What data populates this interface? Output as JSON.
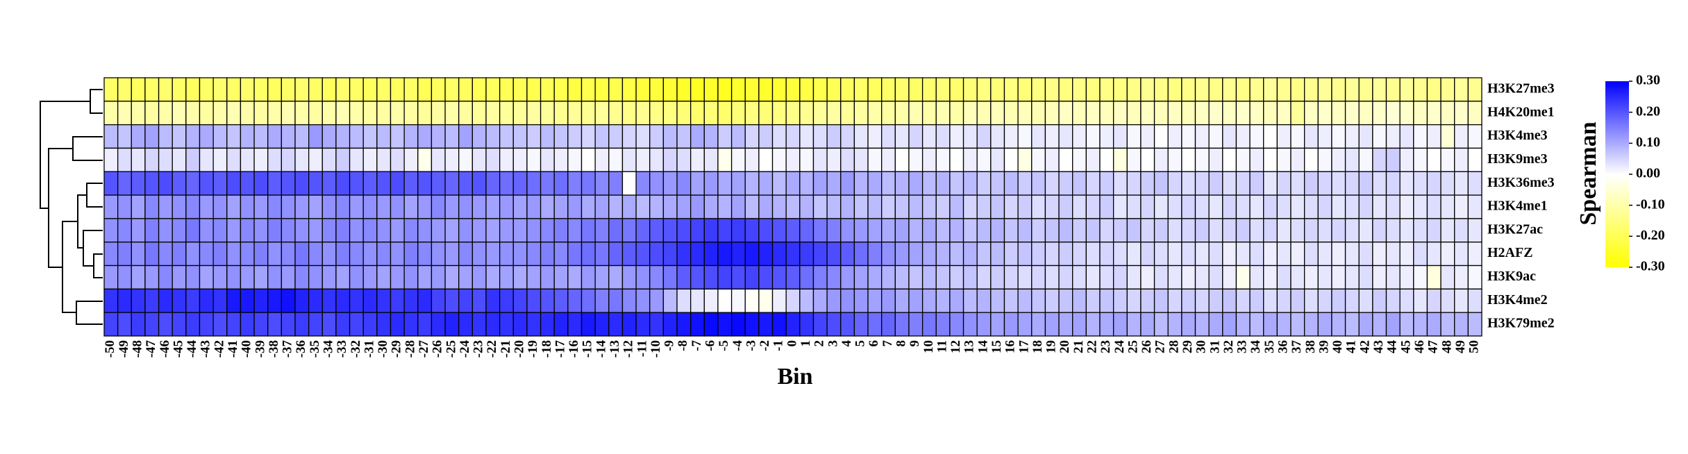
{
  "chart_data": {
    "type": "heatmap",
    "xlabel": "Bin",
    "colorbar_label": "Spearman",
    "x": [
      -50,
      -49,
      -48,
      -47,
      -46,
      -45,
      -44,
      -43,
      -42,
      -41,
      -40,
      -39,
      -38,
      -37,
      -36,
      -35,
      -34,
      -33,
      -32,
      -31,
      -30,
      -29,
      -28,
      -27,
      -26,
      -25,
      -24,
      -23,
      -22,
      -21,
      -20,
      -19,
      -18,
      -17,
      -16,
      -15,
      -14,
      -13,
      -12,
      -11,
      -10,
      -9,
      -8,
      -7,
      -6,
      -5,
      -4,
      -3,
      -2,
      -1,
      0,
      1,
      2,
      3,
      4,
      5,
      6,
      7,
      8,
      9,
      10,
      11,
      12,
      13,
      14,
      15,
      16,
      17,
      18,
      19,
      20,
      21,
      22,
      23,
      24,
      25,
      26,
      27,
      28,
      29,
      30,
      31,
      32,
      33,
      34,
      35,
      36,
      37,
      38,
      39,
      40,
      41,
      42,
      43,
      44,
      45,
      46,
      47,
      48,
      49,
      50
    ],
    "rows": [
      "H3K27me3",
      "H4K20me1",
      "H3K4me3",
      "H3K9me3",
      "H3K36me3",
      "H3K4me1",
      "H3K27ac",
      "H2AFZ",
      "H3K9ac",
      "H3K4me2",
      "H3K79me2"
    ],
    "values": [
      [
        -0.18,
        -0.17,
        -0.19,
        -0.18,
        -0.17,
        -0.18,
        -0.19,
        -0.18,
        -0.17,
        -0.18,
        -0.17,
        -0.18,
        -0.19,
        -0.18,
        -0.17,
        -0.18,
        -0.19,
        -0.17,
        -0.18,
        -0.19,
        -0.18,
        -0.19,
        -0.18,
        -0.2,
        -0.19,
        -0.18,
        -0.19,
        -0.2,
        -0.19,
        -0.2,
        -0.2,
        -0.21,
        -0.2,
        -0.21,
        -0.22,
        -0.21,
        -0.22,
        -0.21,
        -0.22,
        -0.23,
        -0.23,
        -0.24,
        -0.25,
        -0.26,
        -0.25,
        -0.26,
        -0.25,
        -0.24,
        -0.25,
        -0.24,
        -0.23,
        -0.22,
        -0.21,
        -0.2,
        -0.19,
        -0.18,
        -0.19,
        -0.18,
        -0.17,
        -0.18,
        -0.17,
        -0.16,
        -0.17,
        -0.16,
        -0.15,
        -0.16,
        -0.15,
        -0.16,
        -0.15,
        -0.14,
        -0.15,
        -0.14,
        -0.15,
        -0.14,
        -0.15,
        -0.14,
        -0.13,
        -0.14,
        -0.15,
        -0.14,
        -0.13,
        -0.14,
        -0.13,
        -0.14,
        -0.13,
        -0.12,
        -0.13,
        -0.14,
        -0.13,
        -0.12,
        -0.13,
        -0.12,
        -0.13,
        -0.12,
        -0.13,
        -0.12,
        -0.13,
        -0.14,
        -0.13,
        -0.12,
        -0.13
      ],
      [
        -0.1,
        -0.09,
        -0.1,
        -0.11,
        -0.1,
        -0.09,
        -0.1,
        -0.11,
        -0.1,
        -0.09,
        -0.1,
        -0.11,
        -0.1,
        -0.09,
        -0.1,
        -0.11,
        -0.1,
        -0.09,
        -0.1,
        -0.11,
        -0.11,
        -0.1,
        -0.11,
        -0.12,
        -0.11,
        -0.1,
        -0.11,
        -0.12,
        -0.11,
        -0.12,
        -0.12,
        -0.11,
        -0.12,
        -0.13,
        -0.12,
        -0.13,
        -0.12,
        -0.13,
        -0.14,
        -0.13,
        -0.14,
        -0.15,
        -0.16,
        -0.17,
        -0.16,
        -0.17,
        -0.16,
        -0.15,
        -0.16,
        -0.15,
        -0.14,
        -0.13,
        -0.12,
        -0.11,
        -0.12,
        -0.11,
        -0.1,
        -0.11,
        -0.1,
        -0.09,
        -0.1,
        -0.09,
        -0.1,
        -0.08,
        -0.09,
        -0.08,
        -0.09,
        -0.08,
        -0.09,
        -0.08,
        -0.07,
        -0.08,
        -0.07,
        -0.08,
        -0.07,
        -0.08,
        -0.07,
        -0.08,
        -0.07,
        -0.08,
        -0.07,
        -0.06,
        -0.07,
        -0.06,
        -0.07,
        -0.08,
        -0.07,
        -0.12,
        -0.07,
        -0.06,
        -0.07,
        -0.06,
        -0.07,
        -0.06,
        -0.05,
        -0.06,
        -0.07,
        -0.06,
        -0.07,
        -0.06,
        -0.07
      ],
      [
        0.08,
        0.07,
        0.1,
        0.11,
        0.08,
        0.07,
        0.09,
        0.1,
        0.08,
        0.07,
        0.09,
        0.08,
        0.1,
        0.09,
        0.08,
        0.12,
        0.1,
        0.09,
        0.08,
        0.07,
        0.08,
        0.07,
        0.09,
        0.1,
        0.09,
        0.08,
        0.11,
        0.09,
        0.08,
        0.07,
        0.07,
        0.06,
        0.08,
        0.07,
        0.06,
        0.05,
        0.07,
        0.06,
        0.05,
        0.04,
        0.06,
        0.08,
        0.07,
        0.1,
        0.09,
        0.06,
        0.08,
        0.05,
        0.06,
        0.04,
        0.05,
        0.03,
        0.04,
        0.06,
        0.05,
        0.03,
        0.02,
        0.04,
        0.03,
        0.05,
        0.03,
        0.04,
        0.02,
        0.03,
        0.05,
        0.03,
        0.02,
        0.01,
        0.03,
        0.02,
        0.03,
        0.02,
        0.01,
        0.02,
        0.03,
        0.01,
        0.02,
        0.0,
        0.02,
        0.01,
        0.02,
        0.01,
        0.03,
        0.02,
        0.01,
        0.0,
        0.02,
        0.01,
        0.03,
        0.02,
        0.01,
        0.02,
        0.03,
        0.01,
        0.02,
        0.03,
        0.01,
        0.02,
        -0.05,
        0.02,
        0.01
      ],
      [
        0.02,
        0.04,
        0.03,
        0.05,
        0.04,
        0.03,
        0.06,
        0.03,
        0.02,
        0.04,
        0.03,
        0.02,
        0.04,
        0.05,
        0.03,
        0.02,
        0.04,
        0.06,
        0.03,
        0.02,
        0.03,
        0.04,
        0.02,
        -0.02,
        0.03,
        0.02,
        0.01,
        0.03,
        0.04,
        0.02,
        0.02,
        0.01,
        0.03,
        0.02,
        0.01,
        0.0,
        0.02,
        0.01,
        0.03,
        0.02,
        0.03,
        0.05,
        0.04,
        0.02,
        0.03,
        -0.02,
        0.01,
        0.02,
        0.0,
        0.01,
        0.02,
        0.01,
        0.03,
        0.02,
        0.04,
        0.03,
        0.01,
        0.02,
        0.0,
        0.01,
        0.02,
        0.01,
        0.0,
        0.02,
        0.01,
        0.03,
        0.0,
        -0.03,
        0.01,
        0.02,
        0.0,
        0.01,
        0.02,
        0.0,
        -0.04,
        0.01,
        0.0,
        0.02,
        0.01,
        0.0,
        0.01,
        0.02,
        0.0,
        0.01,
        0.02,
        0.0,
        0.01,
        0.02,
        0.0,
        0.01,
        0.02,
        0.03,
        0.01,
        0.05,
        0.06,
        0.02,
        0.01,
        0.0,
        0.01,
        0.02,
        0.0
      ],
      [
        0.2,
        0.18,
        0.19,
        0.2,
        0.21,
        0.19,
        0.18,
        0.2,
        0.19,
        0.21,
        0.2,
        0.21,
        0.19,
        0.2,
        0.21,
        0.2,
        0.19,
        0.21,
        0.2,
        0.19,
        0.2,
        0.21,
        0.19,
        0.2,
        0.19,
        0.18,
        0.19,
        0.2,
        0.18,
        0.17,
        0.18,
        0.17,
        0.16,
        0.17,
        0.15,
        0.16,
        0.14,
        0.15,
        0.0,
        0.14,
        0.13,
        0.12,
        0.14,
        0.11,
        0.12,
        0.1,
        0.11,
        0.09,
        0.1,
        0.08,
        0.1,
        0.09,
        0.11,
        0.1,
        0.12,
        0.09,
        0.1,
        0.08,
        0.09,
        0.1,
        0.08,
        0.09,
        0.07,
        0.08,
        0.06,
        0.07,
        0.08,
        0.06,
        0.07,
        0.05,
        0.06,
        0.07,
        0.05,
        0.06,
        0.04,
        0.05,
        0.06,
        0.07,
        0.05,
        0.04,
        0.05,
        0.06,
        0.04,
        0.05,
        0.06,
        0.03,
        0.05,
        0.04,
        0.06,
        0.05,
        0.04,
        0.05,
        0.06,
        0.04,
        0.05,
        0.03,
        0.04,
        0.05,
        0.04,
        0.03,
        0.04
      ],
      [
        0.12,
        0.13,
        0.11,
        0.14,
        0.12,
        0.13,
        0.14,
        0.12,
        0.13,
        0.11,
        0.13,
        0.12,
        0.14,
        0.13,
        0.12,
        0.11,
        0.13,
        0.14,
        0.12,
        0.13,
        0.12,
        0.13,
        0.11,
        0.12,
        0.14,
        0.12,
        0.13,
        0.12,
        0.11,
        0.12,
        0.11,
        0.12,
        0.1,
        0.11,
        0.12,
        0.1,
        0.11,
        0.09,
        0.1,
        0.08,
        0.09,
        0.1,
        0.11,
        0.12,
        0.1,
        0.09,
        0.11,
        0.08,
        0.1,
        0.09,
        0.08,
        0.09,
        0.07,
        0.08,
        0.09,
        0.07,
        0.08,
        0.06,
        0.07,
        0.08,
        0.07,
        0.06,
        0.08,
        0.05,
        0.06,
        0.07,
        0.05,
        0.06,
        0.04,
        0.05,
        0.06,
        0.04,
        0.05,
        0.06,
        0.03,
        0.04,
        0.05,
        0.03,
        0.04,
        0.05,
        0.04,
        0.03,
        0.05,
        0.04,
        0.03,
        0.05,
        0.04,
        0.03,
        0.04,
        0.05,
        0.03,
        0.04,
        0.05,
        0.03,
        0.04,
        0.02,
        0.03,
        0.04,
        0.03,
        0.02,
        0.03
      ],
      [
        0.13,
        0.14,
        0.12,
        0.15,
        0.13,
        0.14,
        0.16,
        0.13,
        0.14,
        0.12,
        0.14,
        0.13,
        0.15,
        0.14,
        0.13,
        0.12,
        0.14,
        0.15,
        0.13,
        0.14,
        0.13,
        0.12,
        0.14,
        0.13,
        0.12,
        0.11,
        0.13,
        0.12,
        0.11,
        0.12,
        0.12,
        0.13,
        0.14,
        0.15,
        0.14,
        0.16,
        0.15,
        0.17,
        0.16,
        0.18,
        0.19,
        0.2,
        0.21,
        0.22,
        0.23,
        0.22,
        0.23,
        0.22,
        0.21,
        0.2,
        0.19,
        0.18,
        0.16,
        0.15,
        0.13,
        0.12,
        0.11,
        0.1,
        0.11,
        0.09,
        0.1,
        0.08,
        0.09,
        0.07,
        0.08,
        0.09,
        0.07,
        0.08,
        0.06,
        0.07,
        0.08,
        0.06,
        0.07,
        0.05,
        0.06,
        0.07,
        0.05,
        0.06,
        0.04,
        0.05,
        0.06,
        0.04,
        0.05,
        0.06,
        0.04,
        0.05,
        0.03,
        0.04,
        0.05,
        0.04,
        0.05,
        0.04,
        0.03,
        0.05,
        0.04,
        0.03,
        0.04,
        0.05,
        0.03,
        0.04,
        0.03
      ],
      [
        0.14,
        0.15,
        0.13,
        0.16,
        0.14,
        0.15,
        0.13,
        0.14,
        0.15,
        0.13,
        0.14,
        0.15,
        0.13,
        0.14,
        0.16,
        0.14,
        0.13,
        0.15,
        0.14,
        0.13,
        0.14,
        0.13,
        0.15,
        0.14,
        0.13,
        0.12,
        0.14,
        0.13,
        0.12,
        0.13,
        0.13,
        0.14,
        0.15,
        0.14,
        0.16,
        0.17,
        0.16,
        0.18,
        0.19,
        0.2,
        0.21,
        0.22,
        0.24,
        0.25,
        0.26,
        0.27,
        0.26,
        0.27,
        0.26,
        0.25,
        0.24,
        0.23,
        0.22,
        0.21,
        0.19,
        0.17,
        0.15,
        0.13,
        0.12,
        0.11,
        0.1,
        0.09,
        0.08,
        0.09,
        0.07,
        0.08,
        0.06,
        0.07,
        0.06,
        0.05,
        0.06,
        0.05,
        0.04,
        0.05,
        0.04,
        0.03,
        0.05,
        0.04,
        0.03,
        0.04,
        0.03,
        0.04,
        0.02,
        0.03,
        0.04,
        0.02,
        0.03,
        0.02,
        0.04,
        0.03,
        0.02,
        0.03,
        0.04,
        0.02,
        0.03,
        0.02,
        0.04,
        0.03,
        0.02,
        0.03,
        0.02
      ],
      [
        0.12,
        0.13,
        0.11,
        0.12,
        0.14,
        0.12,
        0.13,
        0.11,
        0.12,
        0.13,
        0.12,
        0.11,
        0.13,
        0.12,
        0.14,
        0.13,
        0.12,
        0.11,
        0.13,
        0.12,
        0.11,
        0.12,
        0.13,
        0.11,
        0.12,
        0.1,
        0.11,
        0.12,
        0.1,
        0.11,
        0.1,
        0.11,
        0.12,
        0.11,
        0.1,
        0.12,
        0.11,
        0.1,
        0.12,
        0.13,
        0.14,
        0.16,
        0.19,
        0.2,
        0.21,
        0.22,
        0.21,
        0.22,
        0.21,
        0.2,
        0.19,
        0.17,
        0.15,
        0.14,
        0.12,
        0.11,
        0.1,
        0.09,
        0.08,
        0.07,
        0.08,
        0.07,
        0.06,
        0.07,
        0.05,
        0.06,
        0.05,
        0.04,
        0.05,
        0.04,
        0.05,
        0.04,
        0.03,
        0.04,
        0.05,
        0.03,
        0.02,
        0.04,
        0.03,
        0.02,
        0.03,
        0.04,
        0.02,
        -0.02,
        0.03,
        0.02,
        0.04,
        0.03,
        0.02,
        0.03,
        0.02,
        0.03,
        0.04,
        0.02,
        0.03,
        0.02,
        0.01,
        -0.04,
        0.03,
        0.02,
        0.01
      ],
      [
        0.24,
        0.25,
        0.24,
        0.23,
        0.25,
        0.24,
        0.23,
        0.25,
        0.24,
        0.27,
        0.27,
        0.26,
        0.27,
        0.28,
        0.26,
        0.25,
        0.24,
        0.25,
        0.24,
        0.25,
        0.24,
        0.23,
        0.24,
        0.25,
        0.22,
        0.21,
        0.22,
        0.21,
        0.24,
        0.23,
        0.22,
        0.21,
        0.2,
        0.19,
        0.18,
        0.17,
        0.15,
        0.16,
        0.14,
        0.13,
        0.12,
        0.08,
        0.04,
        0.03,
        0.02,
        0.0,
        0.01,
        -0.01,
        -0.02,
        0.02,
        0.05,
        0.08,
        0.1,
        0.12,
        0.13,
        0.12,
        0.11,
        0.12,
        0.1,
        0.11,
        0.1,
        0.09,
        0.1,
        0.08,
        0.09,
        0.08,
        0.07,
        0.08,
        0.07,
        0.06,
        0.07,
        0.08,
        0.06,
        0.07,
        0.06,
        0.05,
        0.06,
        0.07,
        0.05,
        0.06,
        0.05,
        0.06,
        0.07,
        0.05,
        0.06,
        0.04,
        0.05,
        0.06,
        0.04,
        0.05,
        0.06,
        0.05,
        0.04,
        0.06,
        0.05,
        0.04,
        0.03,
        0.05,
        0.04,
        0.03,
        0.04
      ],
      [
        0.22,
        0.21,
        0.23,
        0.22,
        0.21,
        0.22,
        0.23,
        0.22,
        0.21,
        0.22,
        0.23,
        0.22,
        0.21,
        0.22,
        0.23,
        0.22,
        0.21,
        0.23,
        0.22,
        0.23,
        0.24,
        0.25,
        0.24,
        0.23,
        0.25,
        0.26,
        0.25,
        0.24,
        0.25,
        0.24,
        0.25,
        0.24,
        0.25,
        0.26,
        0.25,
        0.27,
        0.26,
        0.25,
        0.26,
        0.25,
        0.24,
        0.26,
        0.27,
        0.28,
        0.29,
        0.28,
        0.29,
        0.28,
        0.27,
        0.28,
        0.26,
        0.24,
        0.22,
        0.21,
        0.2,
        0.18,
        0.17,
        0.18,
        0.16,
        0.15,
        0.16,
        0.15,
        0.14,
        0.13,
        0.12,
        0.11,
        0.12,
        0.11,
        0.1,
        0.11,
        0.1,
        0.11,
        0.09,
        0.1,
        0.11,
        0.09,
        0.1,
        0.08,
        0.09,
        0.1,
        0.09,
        0.1,
        0.11,
        0.09,
        0.08,
        0.1,
        0.09,
        0.08,
        0.09,
        0.1,
        0.09,
        0.08,
        0.1,
        0.09,
        0.11,
        0.08,
        0.09,
        0.1,
        0.08,
        0.09,
        0.08
      ]
    ],
    "clim": [
      -0.3,
      0.3
    ],
    "cticks": [
      {
        "value": 0.3,
        "label": "0.30"
      },
      {
        "value": 0.2,
        "label": "0.20"
      },
      {
        "value": 0.1,
        "label": "0.10"
      },
      {
        "value": 0,
        "label": "0.00"
      },
      {
        "value": -0.1,
        "label": "-0.10"
      },
      {
        "value": -0.2,
        "label": "-0.20"
      },
      {
        "value": -0.3,
        "label": "-0.30"
      }
    ],
    "colors": {
      "low": "#ffff00",
      "mid": "#ffffff",
      "high": "#0000ff"
    }
  }
}
